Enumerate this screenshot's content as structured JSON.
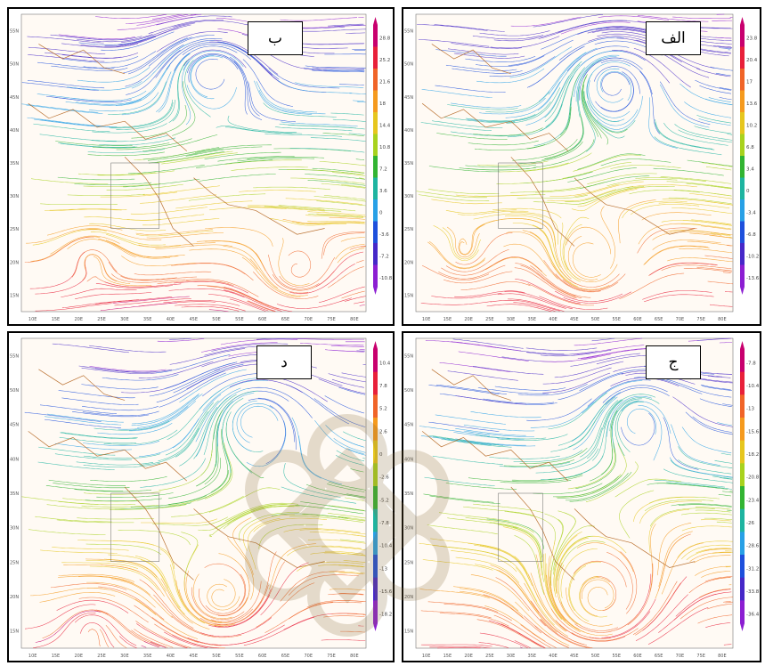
{
  "panels": [
    {
      "id": "p-b",
      "label": "ب",
      "colorbar_ticks": [
        "28.8",
        "25.2",
        "21.6",
        "18",
        "14.4",
        "10.8",
        "7.2",
        "3.6",
        "0",
        "-3.6",
        "-7.2",
        "-10.8"
      ],
      "lat_ticks": [
        "55N",
        "50N",
        "45N",
        "40N",
        "35N",
        "30N",
        "25N",
        "20N",
        "15N"
      ],
      "lon_ticks": [
        "10E",
        "15E",
        "20E",
        "25E",
        "30E",
        "35E",
        "40E",
        "45E",
        "50E",
        "55E",
        "60E",
        "65E",
        "70E",
        "75E",
        "80E"
      ]
    },
    {
      "id": "p-alef",
      "label": "الف",
      "colorbar_ticks": [
        "23.8",
        "20.4",
        "17",
        "13.6",
        "10.2",
        "6.8",
        "3.4",
        "0",
        "-3.4",
        "-6.8",
        "-10.2",
        "-13.6"
      ],
      "lat_ticks": [
        "55N",
        "50N",
        "45N",
        "40N",
        "35N",
        "30N",
        "25N",
        "20N",
        "15N"
      ],
      "lon_ticks": [
        "10E",
        "15E",
        "20E",
        "25E",
        "30E",
        "35E",
        "40E",
        "45E",
        "50E",
        "55E",
        "60E",
        "65E",
        "70E",
        "75E",
        "80E"
      ]
    },
    {
      "id": "p-dal",
      "label": "د",
      "colorbar_ticks": [
        "10.4",
        "7.8",
        "5.2",
        "2.6",
        "0",
        "-2.6",
        "-5.2",
        "-7.8",
        "-10.4",
        "-13",
        "-15.6",
        "-18.2"
      ],
      "lat_ticks": [
        "55N",
        "50N",
        "45N",
        "40N",
        "35N",
        "30N",
        "25N",
        "20N",
        "15N"
      ],
      "lon_ticks": [
        "10E",
        "15E",
        "20E",
        "25E",
        "30E",
        "35E",
        "40E",
        "45E",
        "50E",
        "55E",
        "60E",
        "65E",
        "70E",
        "75E",
        "80E"
      ]
    },
    {
      "id": "p-jim",
      "label": "ج",
      "colorbar_ticks": [
        "-7.8",
        "-10.4",
        "-13",
        "-15.6",
        "-18.2",
        "-20.8",
        "-23.4",
        "-26",
        "-28.6",
        "-31.2",
        "-33.8",
        "-36.4"
      ],
      "lat_ticks": [
        "55N",
        "50N",
        "45N",
        "40N",
        "35N",
        "30N",
        "25N",
        "20N",
        "15N"
      ],
      "lon_ticks": [
        "10E",
        "15E",
        "20E",
        "25E",
        "30E",
        "35E",
        "40E",
        "45E",
        "50E",
        "55E",
        "60E",
        "65E",
        "70E",
        "75E",
        "80E"
      ]
    }
  ],
  "colors": {
    "colorbar": [
      "#c8006e",
      "#e8203a",
      "#f06428",
      "#f59a1e",
      "#e6c61e",
      "#a8d21e",
      "#32b432",
      "#1eb4a0",
      "#28a0e6",
      "#1e50dc",
      "#4628c8",
      "#8c1ed2"
    ],
    "coast": "#b4641e",
    "frame": "#000000"
  },
  "icons": {
    "watermark": "islamic-rosette-watermark-icon"
  }
}
